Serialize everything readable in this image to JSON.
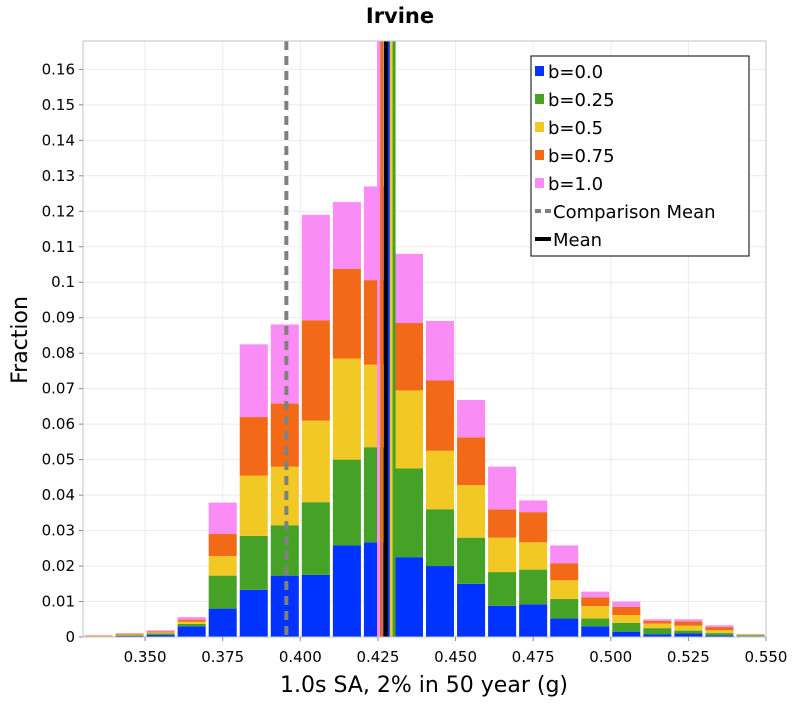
{
  "chart_data": {
    "type": "bar",
    "stacked": true,
    "title": "Irvine",
    "xlabel": "1.0s SA, 2% in 50 year (g)",
    "ylabel": "Fraction",
    "xlim": [
      0.33,
      0.55
    ],
    "ylim": [
      0,
      0.168
    ],
    "grid": true,
    "x_ticks": [
      "0.350",
      "0.375",
      "0.400",
      "0.425",
      "0.450",
      "0.475",
      "0.500",
      "0.525",
      "0.550"
    ],
    "y_ticks": [
      "0",
      "0.01",
      "0.02",
      "0.03",
      "0.04",
      "0.05",
      "0.06",
      "0.07",
      "0.08",
      "0.09",
      "0.1",
      "0.11",
      "0.12",
      "0.13",
      "0.14",
      "0.15",
      "0.16"
    ],
    "bin_width": 0.01,
    "x": [
      0.335,
      0.345,
      0.355,
      0.365,
      0.375,
      0.385,
      0.395,
      0.405,
      0.415,
      0.425,
      0.435,
      0.445,
      0.455,
      0.465,
      0.475,
      0.485,
      0.495,
      0.505,
      0.515,
      0.525,
      0.535,
      0.545
    ],
    "series": [
      {
        "name": "b=0.0",
        "color": "#0033ff",
        "values": [
          0.0001,
          0.0003,
          0.0006,
          0.003,
          0.008,
          0.0133,
          0.0173,
          0.0175,
          0.0258,
          0.0267,
          0.0225,
          0.02,
          0.015,
          0.0088,
          0.0092,
          0.0052,
          0.003,
          0.0015,
          0.0008,
          0.001,
          0.0005,
          0.0002
        ]
      },
      {
        "name": "b=0.25",
        "color": "#45a227",
        "values": [
          0.0001,
          0.0002,
          0.0004,
          0.0007,
          0.0093,
          0.0152,
          0.0142,
          0.0205,
          0.0242,
          0.0268,
          0.025,
          0.016,
          0.013,
          0.0095,
          0.0098,
          0.0055,
          0.0022,
          0.0025,
          0.0017,
          0.0008,
          0.0006,
          0.0003
        ]
      },
      {
        "name": "b=0.5",
        "color": "#f2c924",
        "values": [
          0.0001,
          0.0002,
          0.0003,
          0.0006,
          0.0055,
          0.017,
          0.0165,
          0.023,
          0.0285,
          0.0233,
          0.022,
          0.0165,
          0.0148,
          0.0097,
          0.0077,
          0.0053,
          0.0035,
          0.0022,
          0.0013,
          0.0014,
          0.0008,
          0.0001
        ]
      },
      {
        "name": "b=0.75",
        "color": "#f26a18",
        "values": [
          0.0001,
          0.0002,
          0.0003,
          0.0006,
          0.0063,
          0.0165,
          0.0178,
          0.0283,
          0.0253,
          0.0238,
          0.019,
          0.0198,
          0.0135,
          0.008,
          0.0085,
          0.0048,
          0.0025,
          0.0023,
          0.0007,
          0.0012,
          0.0009,
          0.0001
        ]
      },
      {
        "name": "b=1.0",
        "color": "#f98cf5",
        "values": [
          0.0001,
          0.0002,
          0.0003,
          0.0007,
          0.0088,
          0.0205,
          0.0223,
          0.0297,
          0.0188,
          0.0264,
          0.0195,
          0.0168,
          0.0105,
          0.012,
          0.0033,
          0.005,
          0.0016,
          0.0015,
          0.0005,
          0.0006,
          0.0005,
          0.0001
        ]
      }
    ],
    "vlines": [
      {
        "name": "Comparison Mean",
        "x": 0.3955,
        "color": "#808080",
        "style": "dashed"
      },
      {
        "name": "Mean",
        "x": 0.4275,
        "color": "#000000",
        "style": "solid"
      }
    ],
    "extra_vlines": [
      {
        "x": 0.4252,
        "color": "#f98cf5"
      },
      {
        "x": 0.4262,
        "color": "#f26a18"
      },
      {
        "x": 0.4285,
        "color": "#0033ff"
      },
      {
        "x": 0.4293,
        "color": "#f2c924"
      },
      {
        "x": 0.4302,
        "color": "#45a227"
      }
    ],
    "legend": {
      "position": "top-right",
      "entries": [
        {
          "label": "b=0.0",
          "color": "#0033ff",
          "kind": "box"
        },
        {
          "label": "b=0.25",
          "color": "#45a227",
          "kind": "box"
        },
        {
          "label": "b=0.5",
          "color": "#f2c924",
          "kind": "box"
        },
        {
          "label": "b=0.75",
          "color": "#f26a18",
          "kind": "box"
        },
        {
          "label": "b=1.0",
          "color": "#f98cf5",
          "kind": "box"
        },
        {
          "label": "Comparison Mean",
          "color": "#808080",
          "kind": "dashed"
        },
        {
          "label": "Mean",
          "color": "#000000",
          "kind": "solid"
        }
      ]
    }
  }
}
